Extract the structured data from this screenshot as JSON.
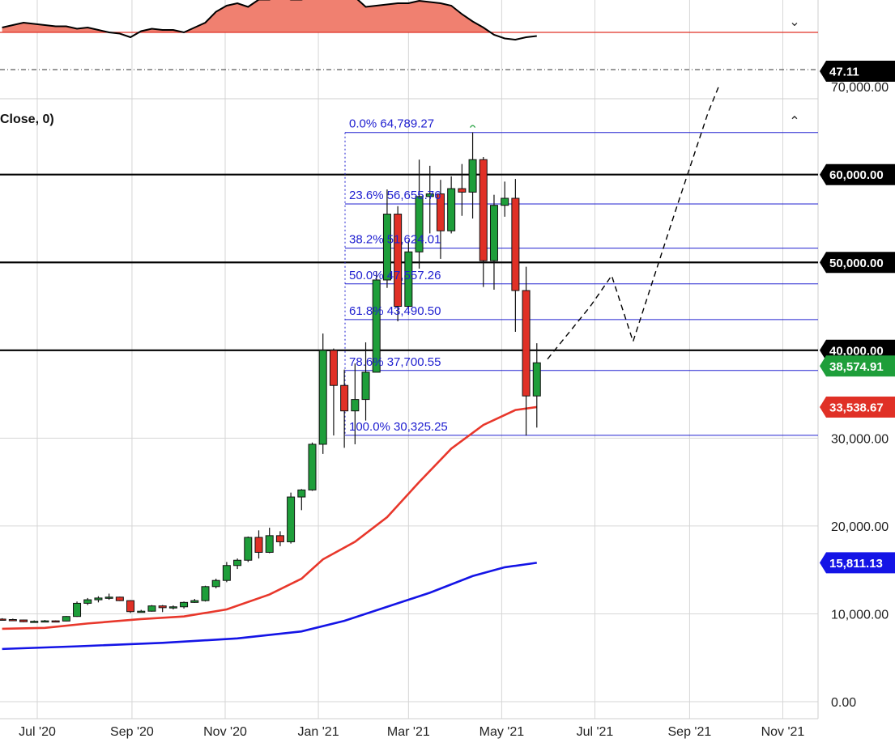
{
  "panel_title": "Close, 0)",
  "icons": {
    "collapse_top": "chevron-down-icon",
    "collapse_main": "chevron-up-icon"
  },
  "colors": {
    "up": "#1e9e3a",
    "down": "#e03026",
    "ma_red": "#e8372b",
    "ma_blue": "#1414e6",
    "fib": "#2020d0",
    "rsi_fill": "#f08070",
    "rsi_line": "#000000",
    "rsi_ref": "#e03026"
  },
  "chart_data": [
    {
      "type": "line",
      "panel": "oscillator",
      "current_value_label": "47.11",
      "reference_line": "red",
      "fill_above_reference": true,
      "dates": [
        "2020-06-08",
        "2020-06-15",
        "2020-06-22",
        "2020-06-29",
        "2020-07-06",
        "2020-07-13",
        "2020-07-20",
        "2020-07-27",
        "2020-08-03",
        "2020-08-10",
        "2020-08-17",
        "2020-08-24",
        "2020-08-31",
        "2020-09-07",
        "2020-09-14",
        "2020-09-21",
        "2020-09-28",
        "2020-10-05",
        "2020-10-12",
        "2020-10-19",
        "2020-10-26",
        "2020-11-02",
        "2020-11-09",
        "2020-11-16",
        "2020-11-23",
        "2020-11-30",
        "2020-12-07",
        "2020-12-14",
        "2020-12-21",
        "2020-12-28",
        "2021-01-04",
        "2021-01-11",
        "2021-01-18",
        "2021-01-25",
        "2021-02-01",
        "2021-02-08",
        "2021-02-15",
        "2021-02-22",
        "2021-03-01",
        "2021-03-08",
        "2021-03-15",
        "2021-03-22",
        "2021-03-29",
        "2021-04-05",
        "2021-04-12",
        "2021-04-19",
        "2021-04-26",
        "2021-05-03",
        "2021-05-10",
        "2021-05-17",
        "2021-05-24"
      ],
      "values": [
        4,
        6,
        8,
        7,
        6,
        5,
        5,
        3,
        4,
        2,
        0,
        -1,
        -4,
        1,
        3,
        2,
        2,
        0,
        4,
        8,
        17,
        22,
        24,
        21,
        27,
        27,
        30,
        27,
        27,
        30,
        32,
        35,
        35,
        29,
        21,
        22,
        23,
        24,
        24,
        26,
        25,
        24,
        22,
        15,
        9,
        4,
        -2,
        -5,
        -6,
        -4,
        -3
      ]
    },
    {
      "type": "candlestick",
      "panel": "price",
      "x_tick_labels": [
        "Jul '20",
        "Sep '20",
        "Nov '20",
        "Jan '21",
        "Mar '21",
        "May '21",
        "Jul '21",
        "Sep '21",
        "Nov '21"
      ],
      "y_tick_labels": [
        "0.00",
        "10,000.00",
        "20,000.00",
        "30,000.00",
        "70,000.00"
      ],
      "ylim": [
        0,
        70000
      ],
      "candles": [
        {
          "date": "2020-06-08",
          "o": 9400,
          "h": 9500,
          "l": 9300,
          "c": 9350
        },
        {
          "date": "2020-06-15",
          "o": 9350,
          "h": 9450,
          "l": 9200,
          "c": 9300
        },
        {
          "date": "2020-06-22",
          "o": 9300,
          "h": 9350,
          "l": 9050,
          "c": 9100
        },
        {
          "date": "2020-06-29",
          "o": 9100,
          "h": 9250,
          "l": 9000,
          "c": 9150
        },
        {
          "date": "2020-07-06",
          "o": 9150,
          "h": 9300,
          "l": 9100,
          "c": 9200
        },
        {
          "date": "2020-07-13",
          "o": 9200,
          "h": 9250,
          "l": 9150,
          "c": 9180
        },
        {
          "date": "2020-07-20",
          "o": 9180,
          "h": 9750,
          "l": 9150,
          "c": 9700
        },
        {
          "date": "2020-07-27",
          "o": 9700,
          "h": 11400,
          "l": 9650,
          "c": 11200
        },
        {
          "date": "2020-08-03",
          "o": 11200,
          "h": 11800,
          "l": 11000,
          "c": 11600
        },
        {
          "date": "2020-08-10",
          "o": 11600,
          "h": 12000,
          "l": 11300,
          "c": 11800
        },
        {
          "date": "2020-08-17",
          "o": 11800,
          "h": 12300,
          "l": 11600,
          "c": 11900
        },
        {
          "date": "2020-08-24",
          "o": 11900,
          "h": 11950,
          "l": 11450,
          "c": 11500
        },
        {
          "date": "2020-08-31",
          "o": 11500,
          "h": 11550,
          "l": 10100,
          "c": 10250
        },
        {
          "date": "2020-09-07",
          "o": 10250,
          "h": 10450,
          "l": 10200,
          "c": 10300
        },
        {
          "date": "2020-09-14",
          "o": 10300,
          "h": 11000,
          "l": 10250,
          "c": 10900
        },
        {
          "date": "2020-09-21",
          "o": 10900,
          "h": 11000,
          "l": 10200,
          "c": 10700
        },
        {
          "date": "2020-09-28",
          "o": 10700,
          "h": 10950,
          "l": 10500,
          "c": 10800
        },
        {
          "date": "2020-10-05",
          "o": 10800,
          "h": 11400,
          "l": 10600,
          "c": 11300
        },
        {
          "date": "2020-10-12",
          "o": 11300,
          "h": 11700,
          "l": 11250,
          "c": 11500
        },
        {
          "date": "2020-10-19",
          "o": 11500,
          "h": 13200,
          "l": 11400,
          "c": 13100
        },
        {
          "date": "2020-10-26",
          "o": 13100,
          "h": 14000,
          "l": 12900,
          "c": 13800
        },
        {
          "date": "2020-11-02",
          "o": 13800,
          "h": 15900,
          "l": 13600,
          "c": 15500
        },
        {
          "date": "2020-11-09",
          "o": 15500,
          "h": 16300,
          "l": 15100,
          "c": 16100
        },
        {
          "date": "2020-11-16",
          "o": 16100,
          "h": 18800,
          "l": 15900,
          "c": 18700
        },
        {
          "date": "2020-11-23",
          "o": 18700,
          "h": 19500,
          "l": 16300,
          "c": 17000
        },
        {
          "date": "2020-11-30",
          "o": 17000,
          "h": 19800,
          "l": 16900,
          "c": 18900
        },
        {
          "date": "2020-12-07",
          "o": 18900,
          "h": 19400,
          "l": 17700,
          "c": 18200
        },
        {
          "date": "2020-12-14",
          "o": 18200,
          "h": 23800,
          "l": 18000,
          "c": 23300
        },
        {
          "date": "2020-12-21",
          "o": 23300,
          "h": 24200,
          "l": 21800,
          "c": 24100
        },
        {
          "date": "2020-12-28",
          "o": 24100,
          "h": 29500,
          "l": 24000,
          "c": 29300
        },
        {
          "date": "2021-01-04",
          "o": 29300,
          "h": 41900,
          "l": 28200,
          "c": 40000
        },
        {
          "date": "2021-01-11",
          "o": 40000,
          "h": 40200,
          "l": 30300,
          "c": 36000
        },
        {
          "date": "2021-01-18",
          "o": 36000,
          "h": 37800,
          "l": 28900,
          "c": 33100
        },
        {
          "date": "2021-01-25",
          "o": 33100,
          "h": 38500,
          "l": 29300,
          "c": 34400
        },
        {
          "date": "2021-02-01",
          "o": 34400,
          "h": 40900,
          "l": 32000,
          "c": 37500
        },
        {
          "date": "2021-02-08",
          "o": 37500,
          "h": 49000,
          "l": 37500,
          "c": 48000
        },
        {
          "date": "2021-02-15",
          "o": 48000,
          "h": 58300,
          "l": 47100,
          "c": 55500
        },
        {
          "date": "2021-02-22",
          "o": 55500,
          "h": 56400,
          "l": 43300,
          "c": 45000
        },
        {
          "date": "2021-03-01",
          "o": 45000,
          "h": 52500,
          "l": 44800,
          "c": 51200
        },
        {
          "date": "2021-03-08",
          "o": 51200,
          "h": 61700,
          "l": 49300,
          "c": 57500
        },
        {
          "date": "2021-03-15",
          "o": 57500,
          "h": 61000,
          "l": 53300,
          "c": 57800
        },
        {
          "date": "2021-03-22",
          "o": 57800,
          "h": 59400,
          "l": 50400,
          "c": 53600
        },
        {
          "date": "2021-03-29",
          "o": 53600,
          "h": 59800,
          "l": 53300,
          "c": 58400
        },
        {
          "date": "2021-04-05",
          "o": 58400,
          "h": 61200,
          "l": 55300,
          "c": 58000
        },
        {
          "date": "2021-04-12",
          "o": 58000,
          "h": 64800,
          "l": 55000,
          "c": 61700
        },
        {
          "date": "2021-04-19",
          "o": 61700,
          "h": 62000,
          "l": 47200,
          "c": 50200
        },
        {
          "date": "2021-04-26",
          "o": 50200,
          "h": 57700,
          "l": 46900,
          "c": 56500
        },
        {
          "date": "2021-05-03",
          "o": 56500,
          "h": 59200,
          "l": 55200,
          "c": 57300
        },
        {
          "date": "2021-05-10",
          "o": 57300,
          "h": 59500,
          "l": 42100,
          "c": 46800
        },
        {
          "date": "2021-05-17",
          "o": 46800,
          "h": 49500,
          "l": 30300,
          "c": 34800
        },
        {
          "date": "2021-05-24",
          "o": 34800,
          "h": 40800,
          "l": 31200,
          "c": 38574.91
        }
      ],
      "moving_averages": [
        {
          "color": "red",
          "last_label": "33,538.67",
          "points": [
            [
              "2020-06-08",
              8300
            ],
            [
              "2020-07-06",
              8400
            ],
            [
              "2020-08-03",
              8900
            ],
            [
              "2020-09-07",
              9400
            ],
            [
              "2020-10-05",
              9700
            ],
            [
              "2020-11-02",
              10500
            ],
            [
              "2020-11-30",
              12200
            ],
            [
              "2020-12-21",
              14000
            ],
            [
              "2021-01-04",
              16200
            ],
            [
              "2021-01-25",
              18200
            ],
            [
              "2021-02-15",
              21000
            ],
            [
              "2021-03-08",
              25000
            ],
            [
              "2021-03-29",
              28800
            ],
            [
              "2021-04-19",
              31500
            ],
            [
              "2021-05-10",
              33200
            ],
            [
              "2021-05-24",
              33538.67
            ]
          ]
        },
        {
          "color": "blue",
          "last_label": "15,811.13",
          "points": [
            [
              "2020-06-08",
              6000
            ],
            [
              "2020-07-27",
              6300
            ],
            [
              "2020-09-21",
              6700
            ],
            [
              "2020-11-09",
              7200
            ],
            [
              "2020-12-21",
              8000
            ],
            [
              "2021-01-18",
              9200
            ],
            [
              "2021-02-15",
              10800
            ],
            [
              "2021-03-15",
              12400
            ],
            [
              "2021-04-12",
              14300
            ],
            [
              "2021-05-03",
              15300
            ],
            [
              "2021-05-24",
              15811.13
            ]
          ]
        }
      ],
      "horizontal_levels": [
        {
          "value": 60000,
          "label": "60,000.00"
        },
        {
          "value": 50000,
          "label": "50,000.00"
        },
        {
          "value": 40000,
          "label": "40,000.00"
        }
      ],
      "fib_levels": [
        {
          "value": 64789.27,
          "label": "0.0% 64,789.27"
        },
        {
          "value": 56655.76,
          "label": "23.6% 56,655.76"
        },
        {
          "value": 51624.01,
          "label": "38.2% 51,624.01"
        },
        {
          "value": 47557.26,
          "label": "50.0% 47,557.26"
        },
        {
          "value": 43490.5,
          "label": "61.8% 43,490.50"
        },
        {
          "value": 37700.55,
          "label": "78.6% 37,700.55"
        },
        {
          "value": 30325.25,
          "label": "100.0% 30,325.25"
        }
      ],
      "price_labels": [
        {
          "text": "38,574.91",
          "value": 38574.91,
          "color": "green"
        },
        {
          "text": "33,538.67",
          "value": 33538.67,
          "color": "red"
        },
        {
          "text": "15,811.13",
          "value": 15811.13,
          "color": "blue"
        }
      ],
      "projection": [
        [
          "2021-05-31",
          39000
        ],
        [
          "2021-06-28",
          45000
        ],
        [
          "2021-07-12",
          48500
        ],
        [
          "2021-07-26",
          41000
        ],
        [
          "2021-08-23",
          56000
        ],
        [
          "2021-09-13",
          67000
        ],
        [
          "2021-09-20",
          70000
        ]
      ]
    }
  ]
}
